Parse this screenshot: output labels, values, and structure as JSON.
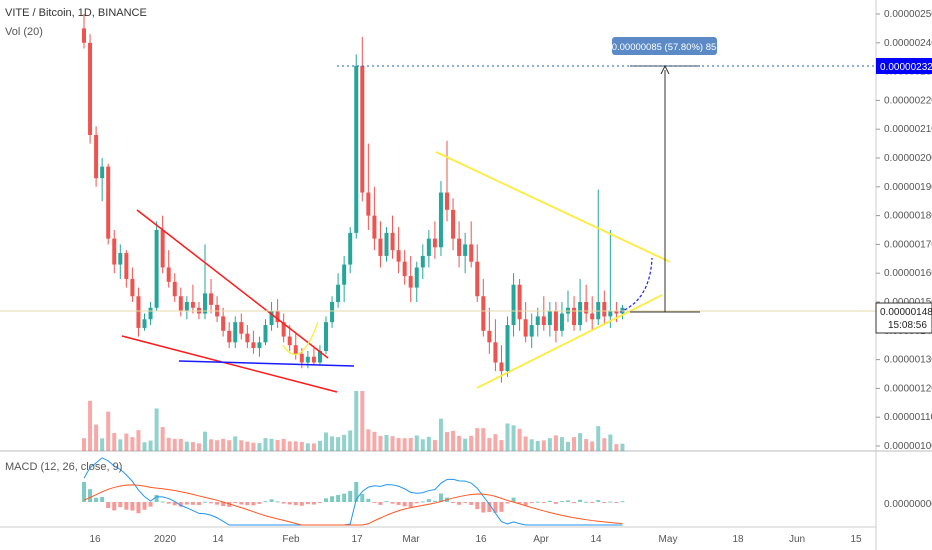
{
  "header": {
    "symbol_line": "VITE / Bitcoin, 1D, BINANCE",
    "volume_label": "Vol (20)",
    "macd_label": "MACD (12, 26, close, 9)"
  },
  "colors": {
    "up": "#26a69a",
    "down": "#ef5350",
    "macd_line": "#2196f3",
    "signal_line": "#ff5722",
    "triangle": "#ffeb3b",
    "wedge": "#ff1a1a",
    "support": "#1a1aff",
    "current_price_tag": "#ffffff",
    "target_tag": "#0000ff"
  },
  "chart_data": {
    "type": "candlestick",
    "x_ticks": [
      "16",
      "2020",
      "14",
      "Feb",
      "17",
      "Mar",
      "16",
      "Apr",
      "14",
      "May",
      "18",
      "Jun",
      "15"
    ],
    "y_ticks": [
      "0.00000250",
      "0.00000240",
      "0.00000230",
      "0.00000220",
      "0.00000210",
      "0.00000200",
      "0.00000190",
      "0.00000180",
      "0.00000170",
      "0.00000160",
      "0.00000150",
      "0.00000140",
      "0.00000130",
      "0.00000120",
      "0.00000110",
      "0.00000100"
    ],
    "ylim": [
      1e-06,
      2.55e-06
    ],
    "macd_y_ticks": [
      "0.00000000"
    ],
    "current_price": "0.00000148",
    "countdown": "15:08:56",
    "target_price": "0.00000232",
    "measure_label": "0.00000085 (57.80%) 85",
    "candles_start_day": 0,
    "candles": [
      [
        245,
        250,
        238,
        240
      ],
      [
        240,
        243,
        205,
        208
      ],
      [
        208,
        211,
        190,
        193
      ],
      [
        193,
        200,
        185,
        197
      ],
      [
        197,
        198,
        170,
        172
      ],
      [
        172,
        175,
        160,
        163
      ],
      [
        163,
        170,
        158,
        167
      ],
      [
        167,
        168,
        155,
        158
      ],
      [
        158,
        162,
        150,
        152
      ],
      [
        152,
        155,
        138,
        141
      ],
      [
        141,
        146,
        140,
        144
      ],
      [
        144,
        150,
        142,
        148
      ],
      [
        148,
        178,
        147,
        175
      ],
      [
        175,
        180,
        160,
        162
      ],
      [
        162,
        168,
        155,
        157
      ],
      [
        157,
        160,
        150,
        152
      ],
      [
        152,
        155,
        145,
        147
      ],
      [
        147,
        152,
        144,
        150
      ],
      [
        150,
        156,
        146,
        148
      ],
      [
        148,
        150,
        144,
        146
      ],
      [
        146,
        170,
        144,
        153
      ],
      [
        153,
        158,
        146,
        149
      ],
      [
        149,
        152,
        143,
        145
      ],
      [
        145,
        148,
        138,
        140
      ],
      [
        140,
        143,
        134,
        136
      ],
      [
        136,
        145,
        134,
        143
      ],
      [
        143,
        146,
        137,
        139
      ],
      [
        139,
        142,
        134,
        136
      ],
      [
        136,
        140,
        132,
        134
      ],
      [
        134,
        138,
        131,
        136
      ],
      [
        136,
        144,
        135,
        142
      ],
      [
        142,
        150,
        140,
        147
      ],
      [
        147,
        151,
        141,
        143
      ],
      [
        143,
        146,
        136,
        138
      ],
      [
        138,
        142,
        133,
        135
      ],
      [
        135,
        139,
        130,
        132
      ],
      [
        132,
        134,
        127,
        129
      ],
      [
        129,
        133,
        127,
        131
      ],
      [
        131,
        134,
        128,
        129
      ],
      [
        129,
        135,
        128,
        133
      ],
      [
        133,
        145,
        132,
        143
      ],
      [
        143,
        152,
        141,
        150
      ],
      [
        150,
        160,
        148,
        156
      ],
      [
        156,
        166,
        150,
        163
      ],
      [
        163,
        176,
        160,
        174
      ],
      [
        174,
        236,
        172,
        232
      ],
      [
        232,
        242,
        185,
        188
      ],
      [
        188,
        205,
        175,
        180
      ],
      [
        180,
        190,
        168,
        172
      ],
      [
        172,
        178,
        162,
        166
      ],
      [
        166,
        176,
        164,
        174
      ],
      [
        174,
        180,
        165,
        168
      ],
      [
        168,
        176,
        160,
        164
      ],
      [
        164,
        168,
        156,
        159
      ],
      [
        159,
        166,
        150,
        155
      ],
      [
        155,
        164,
        150,
        162
      ],
      [
        162,
        170,
        158,
        166
      ],
      [
        166,
        175,
        162,
        172
      ],
      [
        172,
        178,
        165,
        169
      ],
      [
        169,
        192,
        166,
        188
      ],
      [
        188,
        206,
        178,
        182
      ],
      [
        182,
        186,
        168,
        172
      ],
      [
        172,
        178,
        162,
        166
      ],
      [
        166,
        174,
        160,
        170
      ],
      [
        170,
        178,
        162,
        164
      ],
      [
        164,
        170,
        150,
        152
      ],
      [
        152,
        158,
        138,
        140
      ],
      [
        140,
        148,
        132,
        136
      ],
      [
        136,
        144,
        126,
        129
      ],
      [
        129,
        135,
        122,
        126
      ],
      [
        126,
        145,
        124,
        142
      ],
      [
        142,
        160,
        138,
        156
      ],
      [
        156,
        158,
        140,
        144
      ],
      [
        144,
        150,
        136,
        138
      ],
      [
        138,
        146,
        134,
        142
      ],
      [
        142,
        148,
        138,
        145
      ],
      [
        145,
        152,
        140,
        142
      ],
      [
        142,
        150,
        138,
        147
      ],
      [
        147,
        150,
        136,
        140
      ],
      [
        140,
        150,
        138,
        146
      ],
      [
        146,
        154,
        143,
        148
      ],
      [
        148,
        152,
        140,
        142
      ],
      [
        142,
        158,
        140,
        150
      ],
      [
        150,
        156,
        143,
        146
      ],
      [
        146,
        152,
        140,
        144
      ],
      [
        144,
        189,
        142,
        150
      ],
      [
        150,
        154,
        142,
        145
      ],
      [
        145,
        175,
        141,
        147
      ],
      [
        147,
        150,
        143,
        146
      ],
      [
        146,
        149,
        144,
        148
      ]
    ],
    "volume_note": "volume bars per candle",
    "drawings": [
      "red descending wedge",
      "blue support line",
      "yellow symmetrical triangle",
      "measure arrow to target"
    ]
  }
}
